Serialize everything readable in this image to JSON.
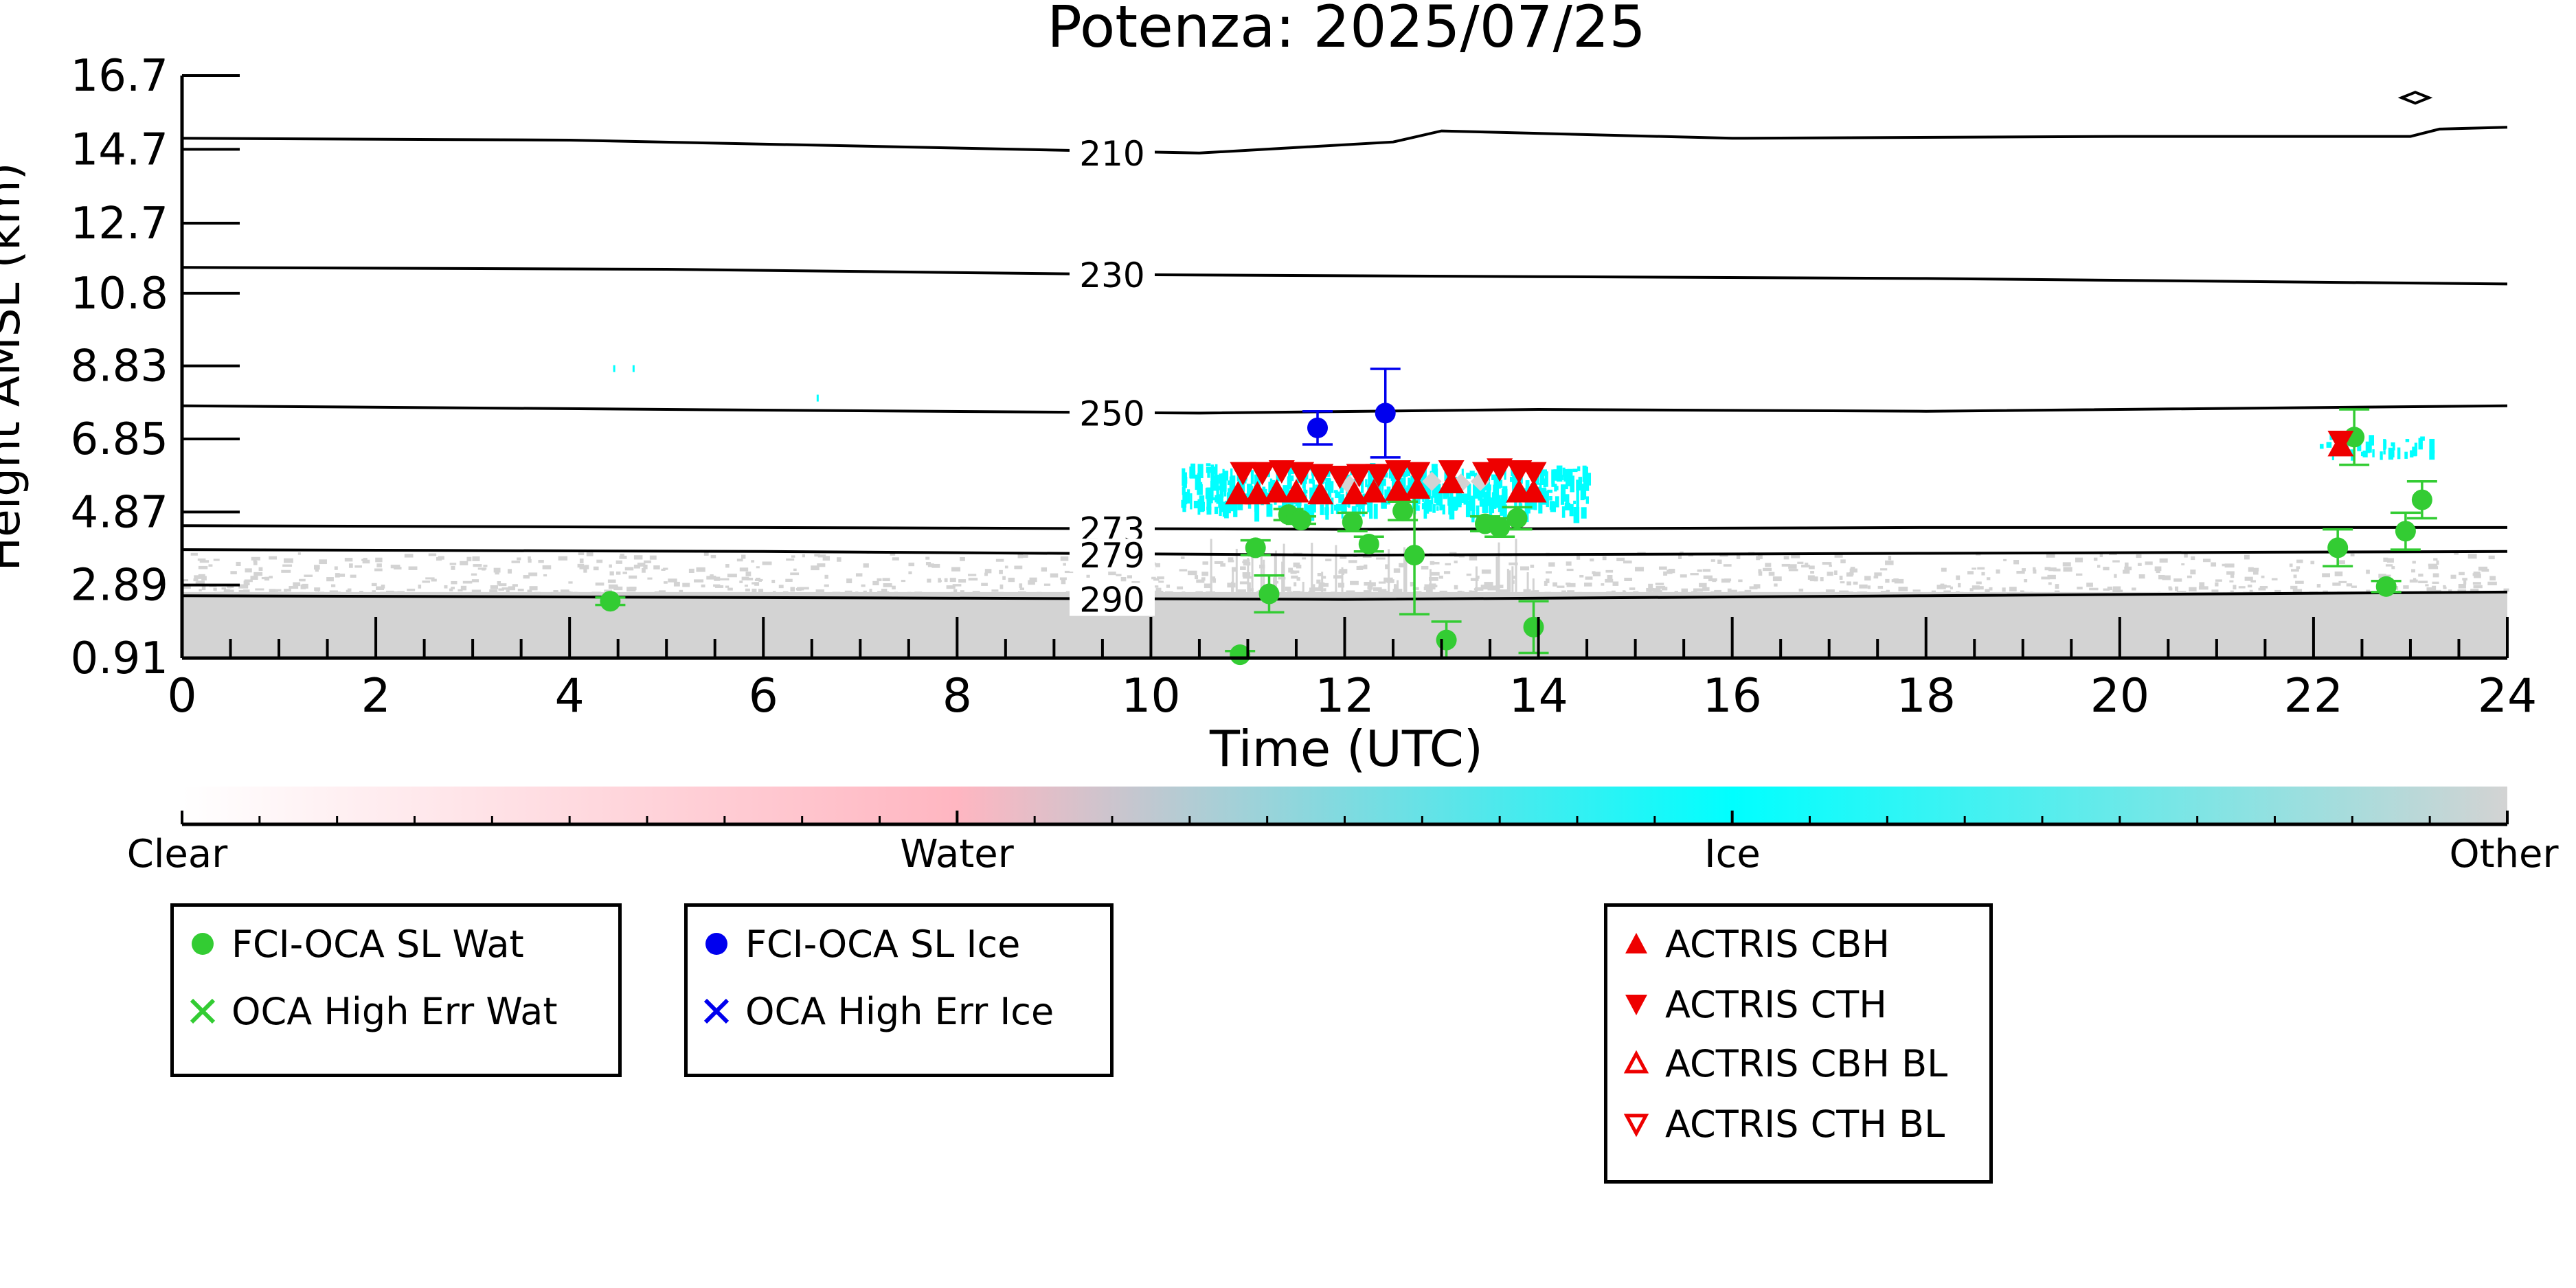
{
  "chart_data": {
    "type": "scatter",
    "title": "Potenza: 2025/07/25",
    "xlabel": "Time (UTC)",
    "ylabel": "Height AMSL (km)",
    "xlim": [
      0,
      24
    ],
    "ylim": [
      0.91,
      16.7
    ],
    "x_ticks": [
      "0",
      "2",
      "4",
      "6",
      "8",
      "10",
      "12",
      "14",
      "16",
      "18",
      "20",
      "22",
      "24"
    ],
    "y_ticks": [
      "0.91",
      "2.89",
      "4.87",
      "6.85",
      "8.83",
      "10.8",
      "12.7",
      "14.7",
      "16.7"
    ],
    "y_tick_values": [
      0.91,
      2.89,
      4.87,
      6.85,
      8.83,
      10.8,
      12.7,
      14.7,
      16.7
    ],
    "temperature_contours": [
      {
        "label": "210",
        "label_x": 9.6,
        "points": [
          [
            0,
            15.0
          ],
          [
            4,
            14.95
          ],
          [
            10.5,
            14.6
          ],
          [
            12.5,
            14.9
          ],
          [
            13,
            15.2
          ],
          [
            16,
            15.0
          ],
          [
            20,
            15.05
          ],
          [
            23,
            15.05
          ],
          [
            23.3,
            15.25
          ],
          [
            24,
            15.3
          ]
        ]
      },
      {
        "label": "230",
        "label_x": 9.6,
        "points": [
          [
            0,
            11.5
          ],
          [
            5,
            11.45
          ],
          [
            10,
            11.3
          ],
          [
            14,
            11.25
          ],
          [
            18,
            11.2
          ],
          [
            24,
            11.05
          ]
        ]
      },
      {
        "label": "250",
        "label_x": 9.6,
        "points": [
          [
            0,
            7.75
          ],
          [
            5,
            7.65
          ],
          [
            10.5,
            7.55
          ],
          [
            14,
            7.65
          ],
          [
            18,
            7.6
          ],
          [
            24,
            7.75
          ]
        ]
      },
      {
        "label": "273",
        "label_x": 9.6,
        "points": [
          [
            0,
            4.5
          ],
          [
            6,
            4.45
          ],
          [
            12,
            4.4
          ],
          [
            18,
            4.45
          ],
          [
            24,
            4.45
          ]
        ]
      },
      {
        "label": "279",
        "label_x": 9.6,
        "points": [
          [
            0,
            3.85
          ],
          [
            6,
            3.8
          ],
          [
            12,
            3.7
          ],
          [
            18,
            3.75
          ],
          [
            24,
            3.8
          ]
        ]
      },
      {
        "label": "290",
        "label_x": 9.6,
        "points": [
          [
            0,
            2.6
          ],
          [
            6,
            2.55
          ],
          [
            12,
            2.5
          ],
          [
            18,
            2.6
          ],
          [
            24,
            2.7
          ]
        ]
      }
    ],
    "series": [
      {
        "name": "FCI-OCA SL Wat",
        "color": "#33cc33",
        "marker": "circle",
        "points": [
          {
            "x": 4.42,
            "y": 2.45,
            "err": 0.1
          },
          {
            "x": 10.92,
            "y": 1.0,
            "err": 0.1
          },
          {
            "x": 11.08,
            "y": 3.9,
            "err": 0.2
          },
          {
            "x": 11.22,
            "y": 2.65,
            "err": 0.5
          },
          {
            "x": 11.42,
            "y": 4.8,
            "err": 0.15
          },
          {
            "x": 11.55,
            "y": 4.65,
            "err": 0.1
          },
          {
            "x": 12.08,
            "y": 4.6,
            "err": 0.25
          },
          {
            "x": 12.25,
            "y": 4.0,
            "err": 0.2
          },
          {
            "x": 12.6,
            "y": 4.9,
            "err": 0.25
          },
          {
            "x": 12.72,
            "y": 3.7,
            "err": 1.6
          },
          {
            "x": 13.05,
            "y": 1.4,
            "err": 0.5
          },
          {
            "x": 13.45,
            "y": 4.55,
            "err": 0.2
          },
          {
            "x": 13.6,
            "y": 4.45,
            "err": 0.25
          },
          {
            "x": 13.78,
            "y": 4.7,
            "err": 0.3
          },
          {
            "x": 13.95,
            "y": 1.75,
            "err": 0.7
          },
          {
            "x": 22.25,
            "y": 3.9,
            "err": 0.5
          },
          {
            "x": 22.42,
            "y": 6.9,
            "err": 0.75
          },
          {
            "x": 22.75,
            "y": 2.85,
            "err": 0.15
          },
          {
            "x": 22.95,
            "y": 4.35,
            "err": 0.5
          },
          {
            "x": 23.12,
            "y": 5.2,
            "err": 0.5
          }
        ]
      },
      {
        "name": "OCA High Err Wat",
        "color": "#33cc33",
        "marker": "x",
        "points": []
      },
      {
        "name": "FCI-OCA SL Ice",
        "color": "#0000ee",
        "marker": "circle",
        "points": [
          {
            "x": 11.72,
            "y": 7.15,
            "err": 0.45
          },
          {
            "x": 12.42,
            "y": 7.55,
            "err": 1.2
          }
        ]
      },
      {
        "name": "OCA High Err Ice",
        "color": "#0000ee",
        "marker": "x",
        "points": []
      },
      {
        "name": "ACTRIS CBH",
        "color": "#ee0000",
        "marker": "triangle-up",
        "points": [
          {
            "x": 10.9,
            "y": 5.3
          },
          {
            "x": 11.1,
            "y": 5.3
          },
          {
            "x": 11.3,
            "y": 5.35
          },
          {
            "x": 11.5,
            "y": 5.35
          },
          {
            "x": 11.75,
            "y": 5.3
          },
          {
            "x": 12.1,
            "y": 5.3
          },
          {
            "x": 12.3,
            "y": 5.35
          },
          {
            "x": 12.55,
            "y": 5.4
          },
          {
            "x": 12.75,
            "y": 5.45
          },
          {
            "x": 13.1,
            "y": 5.6
          },
          {
            "x": 13.8,
            "y": 5.35
          },
          {
            "x": 13.95,
            "y": 5.35
          },
          {
            "x": 22.28,
            "y": 6.6
          }
        ]
      },
      {
        "name": "ACTRIS CTH",
        "color": "#ee0000",
        "marker": "triangle-down",
        "points": [
          {
            "x": 10.95,
            "y": 6.0
          },
          {
            "x": 11.15,
            "y": 6.0
          },
          {
            "x": 11.35,
            "y": 6.05
          },
          {
            "x": 11.55,
            "y": 6.0
          },
          {
            "x": 11.75,
            "y": 5.95
          },
          {
            "x": 11.95,
            "y": 5.9
          },
          {
            "x": 12.15,
            "y": 5.95
          },
          {
            "x": 12.35,
            "y": 5.95
          },
          {
            "x": 12.55,
            "y": 6.05
          },
          {
            "x": 12.75,
            "y": 6.0
          },
          {
            "x": 13.1,
            "y": 6.05
          },
          {
            "x": 13.45,
            "y": 6.0
          },
          {
            "x": 13.6,
            "y": 6.1
          },
          {
            "x": 13.8,
            "y": 6.05
          },
          {
            "x": 13.95,
            "y": 6.0
          },
          {
            "x": 22.28,
            "y": 6.85
          }
        ]
      },
      {
        "name": "ACTRIS CBH BL",
        "color": "#ee0000",
        "marker": "triangle-up-open",
        "points": []
      },
      {
        "name": "ACTRIS CTH BL",
        "color": "#ee0000",
        "marker": "triangle-down-open",
        "points": []
      }
    ],
    "classification": {
      "colorbar_labels": [
        "Clear",
        "Water",
        "Ice",
        "Other"
      ],
      "colors": {
        "clear": "#ffffff",
        "water": "#ffb6c1",
        "ice": "#00ffff",
        "other": "#d3d3d3"
      },
      "ice_cloud_band": {
        "x_range": [
          10.3,
          14.5
        ],
        "y_range": [
          5.0,
          6.2
        ]
      },
      "ice_cloud_late": {
        "x_range": [
          22.0,
          23.3
        ],
        "y_range": [
          6.5,
          7.0
        ]
      },
      "other_layer_top": 2.7,
      "other_speckle_top": 3.8
    },
    "legend_placement": "below"
  }
}
